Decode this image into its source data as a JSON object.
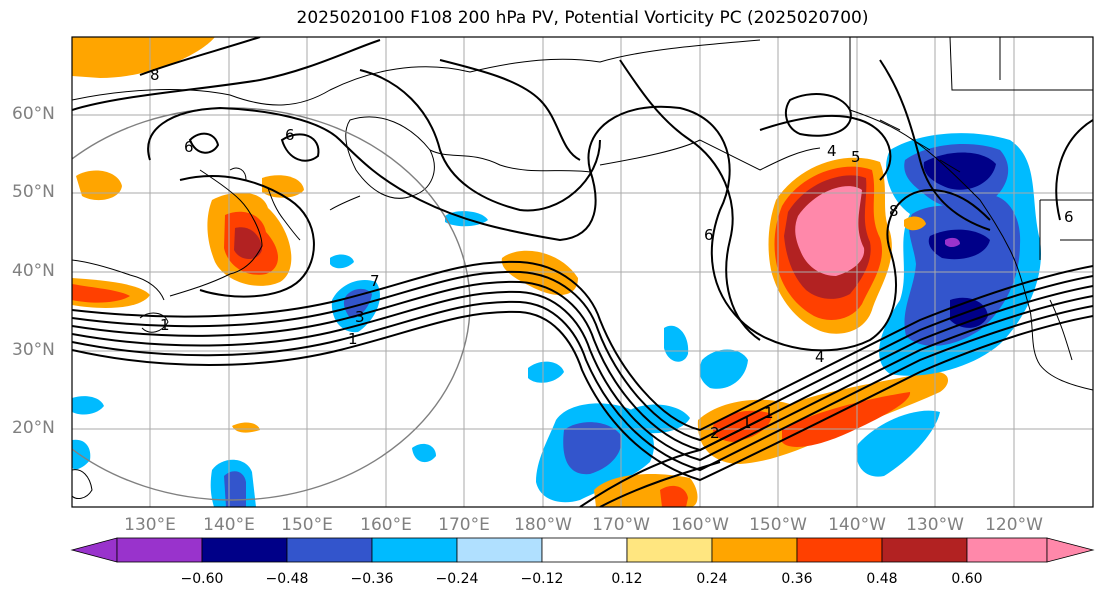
{
  "title": "2025020100 F108 200 hPa PV, Potential Vorticity PC (2025020700)",
  "map": {
    "lat_labels": [
      "60°N",
      "50°N",
      "40°N",
      "30°N",
      "20°N"
    ],
    "lon_labels": [
      "130°E",
      "140°E",
      "150°E",
      "160°E",
      "170°E",
      "180°W",
      "170°W",
      "160°W",
      "150°W",
      "140°W",
      "130°W",
      "120°W"
    ],
    "contour_labels": [
      "8",
      "6",
      "6",
      "5",
      "4",
      "8",
      "6",
      "6",
      "7",
      "1",
      "3",
      "1",
      "2",
      "4",
      "1",
      "1"
    ]
  },
  "colorbar": {
    "tick_labels": [
      "−0.60",
      "−0.48",
      "−0.36",
      "−0.24",
      "−0.12",
      "0.12",
      "0.24",
      "0.36",
      "0.48",
      "0.60"
    ],
    "colors": [
      "#9933cc",
      "#000088",
      "#3355cc",
      "#00bbff",
      "#b0e0ff",
      "#ffffff",
      "#ffe680",
      "#ffa500",
      "#ff4000",
      "#b22222",
      "#ff88aa"
    ]
  }
}
